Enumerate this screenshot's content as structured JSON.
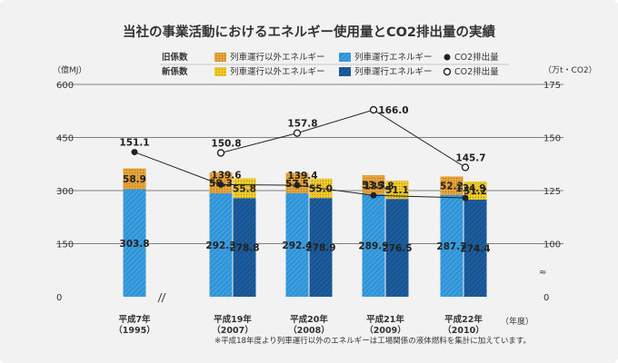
{
  "chart_data": {
    "type": "bar",
    "title": "当社の事業活動におけるエネルギー使用量とCO2排出量の実績",
    "left_axis_unit": "（億MJ）",
    "right_axis_unit": "（万t・CO2）",
    "x_unit": "（年度）",
    "left_ylim": [
      0,
      600
    ],
    "left_ticks": [
      "0",
      "150",
      "300",
      "450",
      "600"
    ],
    "right_ticks": [
      "0",
      "100",
      "125",
      "150",
      "175"
    ],
    "right_break_mark": "≈",
    "legend": {
      "old_label": "旧係数",
      "new_label": "新係数",
      "non_train": "列車運行以外エネルギー",
      "train": "列車運行エネルギー",
      "co2": "CO2排出量"
    },
    "categories": [
      {
        "label1": "平成7年",
        "label2": "（1995）"
      },
      {
        "label1": "平成19年",
        "label2": "（2007）"
      },
      {
        "label1": "平成20年",
        "label2": "（2008）"
      },
      {
        "label1": "平成21年",
        "label2": "（2009）"
      },
      {
        "label1": "平成22年",
        "label2": "（2010）"
      }
    ],
    "old_coefficient": {
      "train": [
        303.8,
        292.3,
        292.4,
        289.9,
        287.7
      ],
      "non_train": [
        58.9,
        58.3,
        57.5,
        53.3,
        52.2
      ],
      "co2": [
        151.1,
        150.8,
        157.8,
        166.0,
        145.7
      ]
    },
    "new_coefficient": {
      "train": [
        null,
        278.8,
        278.9,
        276.5,
        274.4
      ],
      "non_train": [
        null,
        55.8,
        55.0,
        51.1,
        51.2
      ],
      "co2": [
        null,
        139.6,
        139.4,
        135.8,
        134.9
      ]
    },
    "value_labels": {
      "old_train": [
        "303.8",
        "292.3",
        "292.4",
        "289.9",
        "287.7"
      ],
      "old_non_train": [
        "58.9",
        "58.3",
        "57.5",
        "53.3",
        "52.2"
      ],
      "old_co2": [
        "151.1",
        "150.8",
        "157.8",
        "166.0",
        "145.7"
      ],
      "new_train": [
        "278.8",
        "278.9",
        "276.5",
        "274.4"
      ],
      "new_non_train": [
        "55.8",
        "55.0",
        "51.1",
        "51.2"
      ],
      "new_co2": [
        "139.6",
        "139.4",
        "135.8",
        "134.9"
      ]
    },
    "footnote": "※平成18年度より列車運行以外のエネルギーは工場関係の液体燃料を集計に加えています。",
    "colors": {
      "old_train": "#3a9fe0",
      "new_train": "#1c5d9e",
      "non_train": "#e8a73a",
      "non_train_new": "#f2cd2c",
      "grid": "#5a5a5a"
    }
  }
}
